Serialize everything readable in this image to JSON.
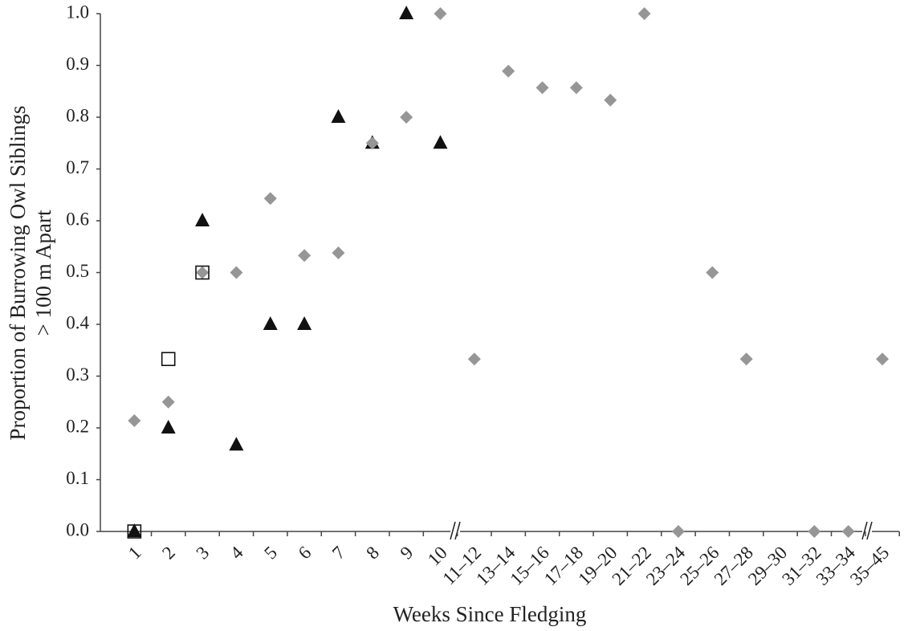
{
  "chart_data": {
    "type": "scatter",
    "xlabel": "Weeks Since Fledging",
    "ylabel": [
      "Proportion of  Burrowing Owl Siblings",
      "> 100 m  Apart"
    ],
    "categories": [
      "1",
      "2",
      "3",
      "4",
      "5",
      "6",
      "7",
      "8",
      "9",
      "10",
      "11–12",
      "13–14",
      "15–16",
      "17–18",
      "19–20",
      "21–22",
      "23–24",
      "25–26",
      "27–28",
      "29–30",
      "31–32",
      "33–34",
      "35–45"
    ],
    "series": [
      {
        "marker": "triangle",
        "color": "#111111",
        "values": [
          0,
          0.2,
          0.6,
          0.167,
          0.4,
          0.4,
          0.8,
          0.75,
          1.0,
          0.75,
          null,
          null,
          null,
          null,
          null,
          null,
          null,
          null,
          null,
          null,
          null,
          null,
          null
        ]
      },
      {
        "marker": "diamond",
        "color": "#969696",
        "values": [
          0.214,
          0.25,
          0.5,
          0.5,
          0.643,
          0.533,
          0.538,
          0.75,
          0.8,
          1.0,
          0.333,
          0.889,
          0.857,
          0.857,
          0.833,
          1.0,
          0,
          0.5,
          0.333,
          null,
          0,
          0,
          0.333
        ]
      },
      {
        "marker": "square",
        "color": "#111111",
        "values": [
          0,
          0.333,
          0.5,
          null,
          null,
          null,
          null,
          null,
          null,
          null,
          null,
          null,
          null,
          null,
          null,
          null,
          null,
          null,
          null,
          null,
          null,
          null,
          null
        ]
      }
    ],
    "ylim": [
      0,
      1
    ],
    "yticks": [
      {
        "value": 0,
        "label": "0.0"
      },
      {
        "value": 0.1,
        "label": "0.1"
      },
      {
        "value": 0.2,
        "label": "0.2"
      },
      {
        "value": 0.3,
        "label": "0.3"
      },
      {
        "value": 0.4,
        "label": "0.4"
      },
      {
        "value": 0.5,
        "label": "0.5"
      },
      {
        "value": 0.6,
        "label": "0.6"
      },
      {
        "value": 0.7,
        "label": "0.7"
      },
      {
        "value": 0.8,
        "label": "0.8"
      },
      {
        "value": 0.9,
        "label": "0.9"
      },
      {
        "value": 1,
        "label": "1.0"
      }
    ]
  }
}
